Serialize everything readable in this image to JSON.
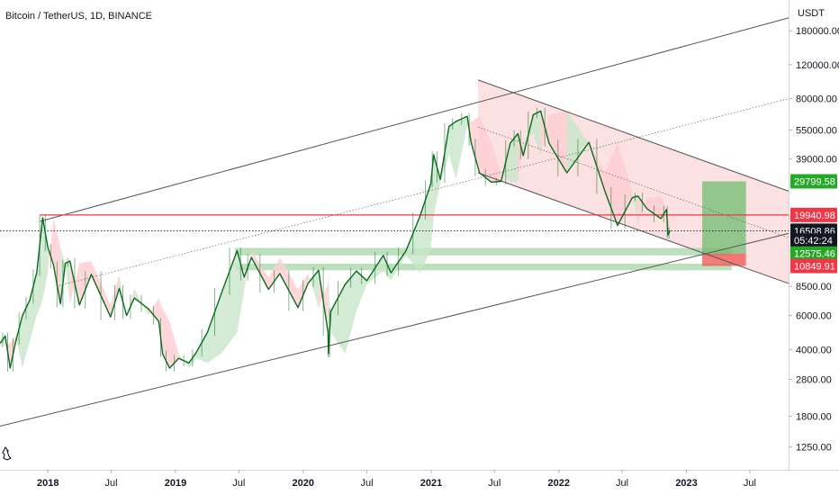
{
  "chart_data": {
    "type": "candlestick",
    "title": "Bitcoin / TetherUS, 1D, BINANCE",
    "currency_label": "USDT",
    "y_scale": "log",
    "ylim": [
      950,
      260000
    ],
    "xlim": [
      "2017-08-17",
      "2023-10-20"
    ],
    "price_ticks": [
      "180000.00",
      "120000.00",
      "80000.00",
      "55000.00",
      "39000.00",
      "8500.00",
      "6000.00",
      "4000.00",
      "2800.00",
      "1800.00",
      "1250.00"
    ],
    "time_ticks": [
      {
        "label": "2018",
        "date": "2018-01-01",
        "bold": true
      },
      {
        "label": "Jul",
        "date": "2018-07-01",
        "bold": false
      },
      {
        "label": "2019",
        "date": "2019-01-01",
        "bold": true
      },
      {
        "label": "Jul",
        "date": "2019-07-01",
        "bold": false
      },
      {
        "label": "2020",
        "date": "2020-01-01",
        "bold": true
      },
      {
        "label": "Jul",
        "date": "2020-07-01",
        "bold": false
      },
      {
        "label": "2021",
        "date": "2021-01-01",
        "bold": true
      },
      {
        "label": "Jul",
        "date": "2021-07-01",
        "bold": false
      },
      {
        "label": "2022",
        "date": "2022-01-01",
        "bold": true
      },
      {
        "label": "Jul",
        "date": "2022-07-01",
        "bold": false
      },
      {
        "label": "2023",
        "date": "2023-01-01",
        "bold": true
      },
      {
        "label": "Jul",
        "date": "2023-07-01",
        "bold": false
      }
    ],
    "price_series": {
      "name": "BTCUSDT",
      "points": [
        [
          "2017-08-17",
          4300
        ],
        [
          "2017-09-01",
          4700
        ],
        [
          "2017-09-15",
          3200
        ],
        [
          "2017-10-01",
          4400
        ],
        [
          "2017-10-20",
          6000
        ],
        [
          "2017-11-10",
          7200
        ],
        [
          "2017-11-30",
          10000
        ],
        [
          "2017-12-17",
          19300
        ],
        [
          "2018-01-01",
          13500
        ],
        [
          "2018-01-17",
          11000
        ],
        [
          "2018-02-06",
          6900
        ],
        [
          "2018-02-20",
          11200
        ],
        [
          "2018-03-05",
          11500
        ],
        [
          "2018-04-01",
          6800
        ],
        [
          "2018-05-05",
          9800
        ],
        [
          "2018-06-29",
          5900
        ],
        [
          "2018-07-24",
          8300
        ],
        [
          "2018-08-14",
          6000
        ],
        [
          "2018-09-05",
          7400
        ],
        [
          "2018-10-15",
          6500
        ],
        [
          "2018-11-14",
          5600
        ],
        [
          "2018-11-25",
          3800
        ],
        [
          "2018-12-15",
          3200
        ],
        [
          "2019-01-10",
          3600
        ],
        [
          "2019-02-08",
          3400
        ],
        [
          "2019-03-01",
          3850
        ],
        [
          "2019-04-02",
          4900
        ],
        [
          "2019-05-14",
          8000
        ],
        [
          "2019-06-26",
          13000
        ],
        [
          "2019-07-16",
          9500
        ],
        [
          "2019-08-06",
          12000
        ],
        [
          "2019-09-24",
          8200
        ],
        [
          "2019-10-26",
          9900
        ],
        [
          "2019-12-17",
          6600
        ],
        [
          "2020-01-15",
          8800
        ],
        [
          "2020-02-14",
          10300
        ],
        [
          "2020-03-12",
          4900
        ],
        [
          "2020-03-13",
          3800
        ],
        [
          "2020-03-20",
          6300
        ],
        [
          "2020-04-30",
          8700
        ],
        [
          "2020-06-01",
          10200
        ],
        [
          "2020-07-01",
          9100
        ],
        [
          "2020-08-17",
          12300
        ],
        [
          "2020-09-08",
          10000
        ],
        [
          "2020-10-21",
          13000
        ],
        [
          "2020-11-30",
          19700
        ],
        [
          "2020-12-31",
          29000
        ],
        [
          "2021-01-08",
          41000
        ],
        [
          "2021-01-27",
          30500
        ],
        [
          "2021-02-21",
          57500
        ],
        [
          "2021-03-13",
          61000
        ],
        [
          "2021-04-14",
          64800
        ],
        [
          "2021-04-25",
          47500
        ],
        [
          "2021-05-19",
          33000
        ],
        [
          "2021-06-22",
          29500
        ],
        [
          "2021-07-20",
          29800
        ],
        [
          "2021-08-15",
          47000
        ],
        [
          "2021-09-06",
          52700
        ],
        [
          "2021-09-21",
          40500
        ],
        [
          "2021-10-20",
          66000
        ],
        [
          "2021-11-10",
          69000
        ],
        [
          "2021-12-04",
          47000
        ],
        [
          "2022-01-24",
          33000
        ],
        [
          "2022-03-28",
          47500
        ],
        [
          "2022-05-12",
          26700
        ],
        [
          "2022-06-18",
          17600
        ],
        [
          "2022-07-30",
          24500
        ],
        [
          "2022-08-15",
          25000
        ],
        [
          "2022-09-10",
          21500
        ],
        [
          "2022-10-20",
          19100
        ],
        [
          "2022-11-05",
          21300
        ],
        [
          "2022-11-09",
          15700
        ],
        [
          "2022-11-15",
          16508
        ]
      ]
    },
    "trend_lines": [
      {
        "name": "outer-upper",
        "from": [
          "2017-12-10",
          18500
        ],
        "to": [
          "2023-10-20",
          210000
        ]
      },
      {
        "name": "outer-lower",
        "from": [
          "2017-08-17",
          1600
        ],
        "to": [
          "2023-10-20",
          16000
        ]
      },
      {
        "name": "mid-dotted",
        "from": [
          "2018-01-25",
          8500
        ],
        "to": [
          "2023-10-20",
          80000
        ]
      },
      {
        "name": "channel-upper",
        "from": [
          "2021-05-15",
          100000
        ],
        "to": [
          "2023-10-20",
          26500
        ]
      },
      {
        "name": "channel-lower",
        "from": [
          "2021-05-15",
          33000
        ],
        "to": [
          "2023-10-20",
          8800
        ]
      },
      {
        "name": "channel-mid-dotted",
        "from": [
          "2021-05-15",
          57000
        ],
        "to": [
          "2023-10-20",
          15200
        ]
      }
    ],
    "horizontal_levels": [
      {
        "name": "resistance-19940",
        "value": 19940.98,
        "from": "2017-12-10",
        "color": "#f23645"
      },
      {
        "name": "current-16508",
        "value": 16508.86,
        "from": "2017-08-17",
        "color": "#131722",
        "style": "dotted"
      }
    ],
    "zones": [
      {
        "name": "support-zone-upper",
        "from": "2019-06-20",
        "to": "2023-05-10",
        "low": 12300,
        "high": 13450,
        "color": "#a5d6a7"
      },
      {
        "name": "support-zone-lower",
        "from": "2019-06-20",
        "to": "2023-05-10",
        "low": 10300,
        "high": 11150,
        "color": "#a5d6a7"
      },
      {
        "name": "target-box",
        "from": "2023-02-15",
        "to": "2023-06-20",
        "low": 12575.46,
        "high": 29799.58,
        "color": "#66bb6a"
      },
      {
        "name": "stop-box",
        "from": "2023-02-15",
        "to": "2023-06-20",
        "low": 10849.91,
        "high": 12575.46,
        "color": "#ef5350"
      }
    ],
    "price_badges": [
      {
        "label": "29799.58",
        "value": 29799.58,
        "bg": "#26a826"
      },
      {
        "label": "19940.98",
        "value": 19940.98,
        "bg": "#f23645"
      },
      {
        "label": "16508.86",
        "value": 16508.86,
        "bg": "#131722"
      },
      {
        "label": "05:42:24",
        "value": 14700,
        "bg": "#131722"
      },
      {
        "label": "12575.46",
        "value": 12575.46,
        "bg": "#26a826"
      },
      {
        "label": "10849.91",
        "value": 10849.91,
        "bg": "#f23645"
      }
    ],
    "colors": {
      "price_line": "#0b6b1e",
      "up_cloud": "#c8e6c9",
      "down_cloud": "#ffcdd2",
      "channel_fill": "#fadcdc",
      "trend_line": "#555555",
      "axis_line": "#d1d4dc"
    }
  }
}
